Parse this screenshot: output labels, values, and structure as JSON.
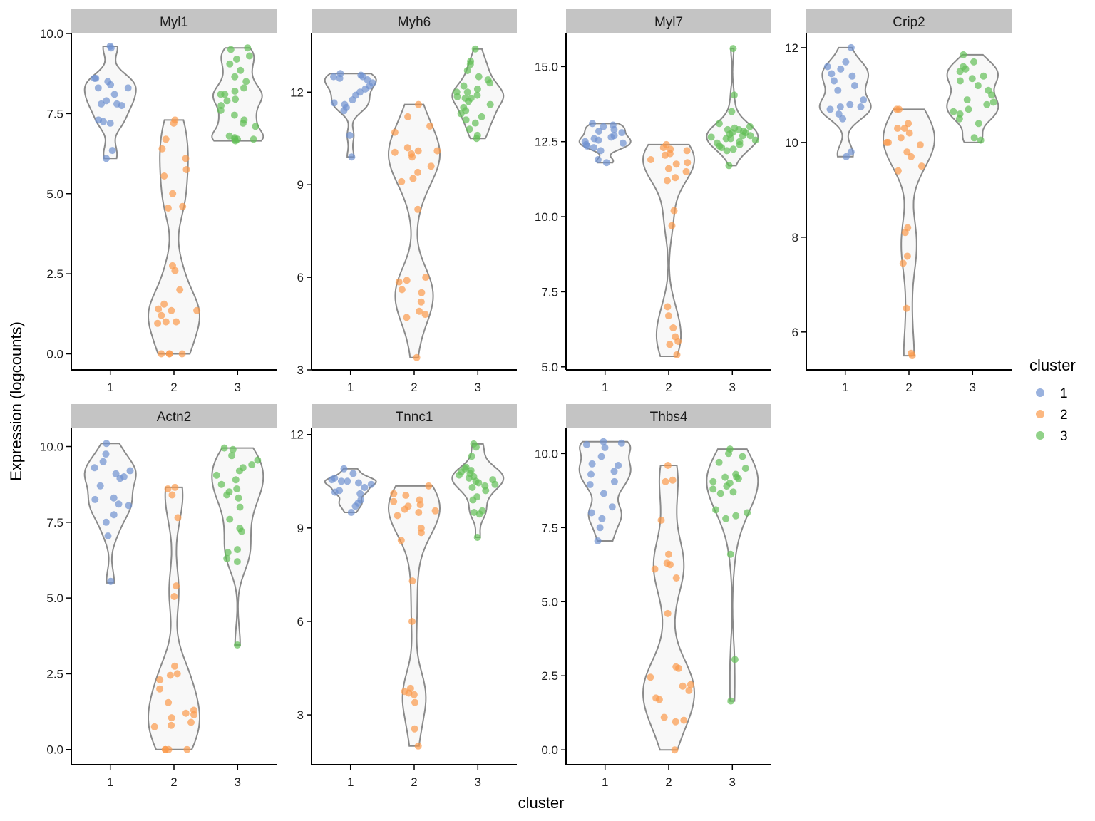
{
  "figure": {
    "xlabel": "cluster",
    "ylabel": "Expression (logcounts)",
    "legend_title": "cluster",
    "legend_items": [
      "1",
      "2",
      "3"
    ],
    "legend_placement": "right"
  },
  "colors": {
    "cluster_1": "#6f92d0",
    "cluster_2": "#fb9a4b",
    "cluster_3": "#62bf57",
    "violin_stroke": "#8a8a8a",
    "violin_fill": "#f8f8f8",
    "strip_fill": "#c4c4c4"
  },
  "chart_data": [
    {
      "type": "violin",
      "title": "Myl1",
      "categories": [
        "1",
        "2",
        "3"
      ],
      "ylim": [
        -0.5,
        10.0
      ],
      "yticks": [
        0.0,
        2.5,
        5.0,
        7.5,
        10.0
      ],
      "ytick_labels": [
        "0.0",
        "2.5",
        "5.0",
        "7.5",
        "10.0"
      ],
      "series": [
        {
          "cluster": "1",
          "range": [
            6.1,
            9.6
          ],
          "values": [
            9.6,
            9.55,
            8.6,
            8.3,
            8.5,
            8.4,
            8.6,
            8.3,
            8.1,
            7.9,
            7.8,
            7.75,
            7.8,
            7.3,
            7.2,
            7.25,
            6.35,
            6.1
          ]
        },
        {
          "cluster": "2",
          "range": [
            0.0,
            7.3
          ],
          "values": [
            7.3,
            7.2,
            6.7,
            6.4,
            6.1,
            5.75,
            5.55,
            5.0,
            4.6,
            4.55,
            2.75,
            2.6,
            2.0,
            1.55,
            1.4,
            1.35,
            1.35,
            1.2,
            1.0,
            1.0,
            0.95,
            0.0,
            0.0,
            0.0,
            0.0
          ]
        },
        {
          "cluster": "3",
          "range": [
            6.65,
            9.55
          ],
          "values": [
            9.55,
            9.5,
            9.3,
            9.2,
            9.05,
            8.85,
            8.65,
            8.5,
            8.3,
            8.1,
            8.1,
            7.95,
            7.75,
            7.6,
            7.45,
            7.3,
            7.2,
            7.1,
            6.8,
            6.75,
            6.7,
            6.7,
            6.7,
            6.65,
            8.2,
            7.9
          ]
        }
      ]
    },
    {
      "type": "violin",
      "title": "Myh6",
      "categories": [
        "1",
        "2",
        "3"
      ],
      "ylim": [
        3.0,
        13.9
      ],
      "yticks": [
        3,
        6,
        9,
        12
      ],
      "ytick_labels": [
        "3",
        "6",
        "9",
        "12"
      ],
      "series": [
        {
          "cluster": "1",
          "range": [
            9.9,
            12.6
          ],
          "values": [
            12.6,
            12.55,
            12.5,
            12.45,
            12.5,
            12.4,
            12.3,
            12.2,
            12.1,
            12.0,
            11.9,
            11.75,
            11.65,
            11.6,
            11.5,
            11.4,
            10.6,
            9.9
          ]
        },
        {
          "cluster": "2",
          "range": [
            3.4,
            11.6
          ],
          "values": [
            11.6,
            11.2,
            10.9,
            10.7,
            10.2,
            10.1,
            10.0,
            10.05,
            10.1,
            9.9,
            9.6,
            9.4,
            9.2,
            9.1,
            8.2,
            6.0,
            5.9,
            5.85,
            5.6,
            5.5,
            5.2,
            4.9,
            4.8,
            4.7,
            3.4
          ]
        },
        {
          "cluster": "3",
          "range": [
            10.5,
            13.4
          ],
          "values": [
            13.4,
            13.0,
            12.9,
            12.7,
            12.5,
            12.4,
            12.3,
            12.2,
            12.1,
            12.0,
            12.0,
            11.9,
            11.85,
            11.8,
            11.8,
            11.7,
            11.6,
            11.5,
            11.4,
            11.3,
            11.2,
            11.1,
            11.0,
            10.8,
            10.6,
            10.5
          ]
        }
      ]
    },
    {
      "type": "violin",
      "title": "Myl7",
      "categories": [
        "1",
        "2",
        "3"
      ],
      "ylim": [
        4.9,
        16.1
      ],
      "yticks": [
        5.0,
        7.5,
        10.0,
        12.5,
        15.0
      ],
      "ytick_labels": [
        "5.0",
        "7.5",
        "10.0",
        "12.5",
        "15.0"
      ],
      "series": [
        {
          "cluster": "1",
          "range": [
            11.8,
            13.1
          ],
          "values": [
            13.1,
            13.05,
            13.0,
            12.9,
            12.85,
            12.8,
            12.7,
            12.65,
            12.6,
            12.55,
            12.5,
            12.45,
            12.4,
            12.35,
            12.3,
            12.2,
            11.9,
            11.8
          ]
        },
        {
          "cluster": "2",
          "range": [
            5.35,
            12.4
          ],
          "values": [
            12.4,
            12.3,
            12.25,
            12.2,
            12.1,
            12.05,
            11.9,
            11.8,
            11.75,
            11.6,
            11.5,
            11.3,
            11.2,
            10.2,
            9.7,
            7.0,
            6.7,
            6.3,
            6.0,
            5.85,
            5.75,
            5.4
          ]
        },
        {
          "cluster": "3",
          "range": [
            11.7,
            15.6
          ],
          "values": [
            15.6,
            14.05,
            13.5,
            13.1,
            13.0,
            12.95,
            12.9,
            12.9,
            12.85,
            12.8,
            12.8,
            12.75,
            12.7,
            12.7,
            12.65,
            12.6,
            12.6,
            12.55,
            12.5,
            12.45,
            12.4,
            12.35,
            12.3,
            12.25,
            12.2,
            11.7
          ]
        }
      ]
    },
    {
      "type": "violin",
      "title": "Crip2",
      "categories": [
        "1",
        "2",
        "3"
      ],
      "ylim": [
        5.2,
        12.3
      ],
      "yticks": [
        6,
        8,
        10,
        12
      ],
      "ytick_labels": [
        "6",
        "8",
        "10",
        "12"
      ],
      "series": [
        {
          "cluster": "1",
          "range": [
            9.7,
            12.0
          ],
          "values": [
            12.0,
            11.7,
            11.6,
            11.55,
            11.45,
            11.4,
            11.3,
            11.2,
            11.1,
            10.9,
            10.8,
            10.75,
            10.75,
            10.7,
            10.6,
            10.5,
            9.8,
            9.7
          ]
        },
        {
          "cluster": "2",
          "range": [
            5.5,
            10.7
          ],
          "values": [
            10.7,
            10.7,
            10.4,
            10.3,
            10.3,
            10.2,
            10.1,
            10.0,
            10.0,
            9.95,
            9.8,
            9.7,
            9.5,
            9.4,
            8.2,
            8.1,
            7.6,
            7.45,
            6.5,
            5.55,
            5.5
          ]
        },
        {
          "cluster": "3",
          "range": [
            10.0,
            11.85
          ],
          "values": [
            11.85,
            11.7,
            11.6,
            11.55,
            11.5,
            11.4,
            11.35,
            11.3,
            11.2,
            11.1,
            11.0,
            10.9,
            10.85,
            10.8,
            10.7,
            10.65,
            10.6,
            10.5,
            10.4,
            10.1,
            10.05
          ]
        }
      ]
    },
    {
      "type": "violin",
      "title": "Actn2",
      "categories": [
        "1",
        "2",
        "3"
      ],
      "ylim": [
        -0.5,
        10.6
      ],
      "yticks": [
        0.0,
        2.5,
        5.0,
        7.5,
        10.0
      ],
      "ytick_labels": [
        "0.0",
        "2.5",
        "5.0",
        "7.5",
        "10.0"
      ],
      "series": [
        {
          "cluster": "1",
          "range": [
            5.5,
            10.1
          ],
          "values": [
            10.1,
            9.75,
            9.5,
            9.3,
            9.2,
            9.1,
            9.0,
            8.95,
            8.7,
            8.3,
            8.25,
            8.1,
            8.05,
            7.75,
            7.5,
            7.05,
            5.55
          ]
        },
        {
          "cluster": "2",
          "range": [
            0.0,
            8.65
          ],
          "values": [
            8.65,
            8.6,
            8.4,
            7.65,
            5.4,
            5.05,
            2.75,
            2.5,
            2.45,
            2.3,
            2.0,
            1.55,
            1.3,
            1.2,
            1.15,
            1.05,
            0.9,
            0.8,
            0.75,
            0.0,
            0.0,
            0.0,
            0.0
          ]
        },
        {
          "cluster": "3",
          "range": [
            3.45,
            9.95
          ],
          "values": [
            9.95,
            9.9,
            9.7,
            9.55,
            9.4,
            9.3,
            9.2,
            9.05,
            8.9,
            8.75,
            8.6,
            8.5,
            8.4,
            8.3,
            8.0,
            7.6,
            7.3,
            7.2,
            6.6,
            6.5,
            6.3,
            6.2,
            3.45
          ]
        }
      ]
    },
    {
      "type": "violin",
      "title": "Tnnc1",
      "categories": [
        "1",
        "2",
        "3"
      ],
      "ylim": [
        1.4,
        12.2
      ],
      "yticks": [
        3,
        6,
        9,
        12
      ],
      "ytick_labels": [
        "3",
        "6",
        "9",
        "12"
      ],
      "series": [
        {
          "cluster": "1",
          "range": [
            9.5,
            10.9
          ],
          "values": [
            10.9,
            10.75,
            10.6,
            10.55,
            10.5,
            10.5,
            10.45,
            10.4,
            10.3,
            10.2,
            10.15,
            10.1,
            9.9,
            9.8,
            9.7,
            9.5
          ]
        },
        {
          "cluster": "2",
          "range": [
            2.0,
            10.35
          ],
          "values": [
            10.35,
            10.1,
            10.05,
            9.9,
            9.85,
            9.75,
            9.7,
            9.6,
            9.55,
            9.5,
            9.4,
            9.0,
            8.85,
            8.6,
            7.3,
            6.0,
            3.85,
            3.75,
            3.7,
            3.65,
            3.4,
            2.55,
            2.0
          ]
        },
        {
          "cluster": "3",
          "range": [
            8.7,
            11.7
          ],
          "values": [
            11.7,
            11.6,
            11.3,
            10.95,
            10.9,
            10.85,
            10.8,
            10.75,
            10.7,
            10.65,
            10.6,
            10.55,
            10.5,
            10.45,
            10.4,
            10.35,
            10.3,
            10.2,
            10.0,
            9.9,
            9.55,
            9.5,
            9.45,
            8.7
          ]
        }
      ]
    },
    {
      "type": "violin",
      "title": "Thbs4",
      "categories": [
        "1",
        "2",
        "3"
      ],
      "ylim": [
        -0.5,
        10.85
      ],
      "yticks": [
        0.0,
        2.5,
        5.0,
        7.5,
        10.0
      ],
      "ytick_labels": [
        "0.0",
        "2.5",
        "5.0",
        "7.5",
        "10.0"
      ],
      "series": [
        {
          "cluster": "1",
          "range": [
            7.05,
            10.4
          ],
          "values": [
            10.4,
            10.35,
            10.3,
            10.2,
            9.9,
            9.65,
            9.6,
            9.4,
            9.3,
            9.05,
            8.95,
            8.65,
            8.2,
            8.0,
            7.8,
            7.5,
            7.05
          ]
        },
        {
          "cluster": "2",
          "range": [
            0.0,
            9.6
          ],
          "values": [
            9.6,
            9.1,
            9.05,
            7.75,
            6.6,
            6.3,
            6.25,
            6.1,
            5.8,
            4.6,
            2.8,
            2.75,
            2.45,
            2.2,
            2.15,
            2.0,
            1.75,
            1.7,
            1.1,
            1.0,
            0.95,
            0.0
          ]
        },
        {
          "cluster": "3",
          "range": [
            1.65,
            10.15
          ],
          "values": [
            10.15,
            10.0,
            9.9,
            9.7,
            9.5,
            9.3,
            9.2,
            9.2,
            9.15,
            9.05,
            9.0,
            8.9,
            8.8,
            8.7,
            8.65,
            8.1,
            8.0,
            7.9,
            7.8,
            6.6,
            3.05,
            1.65
          ]
        }
      ]
    }
  ]
}
